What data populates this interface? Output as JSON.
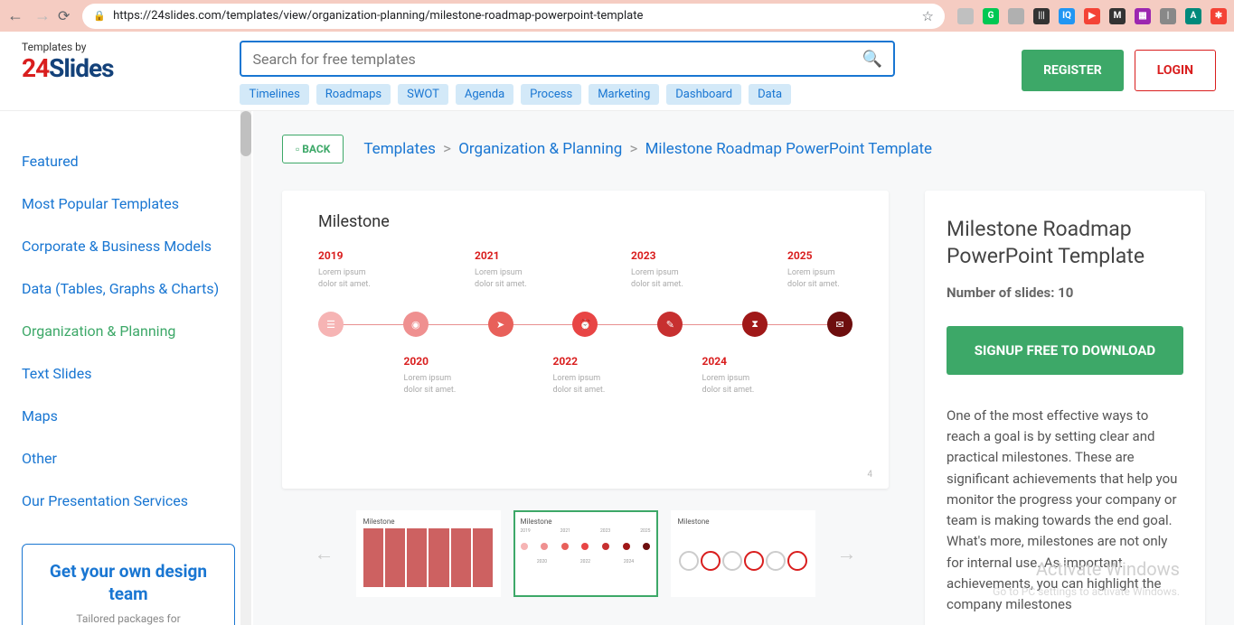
{
  "browser": {
    "url": "https://24slides.com/templates/view/organization-planning/milestone-roadmap-powerpoint-template",
    "ext_icons": [
      {
        "bg": "#c0c0c0",
        "txt": ""
      },
      {
        "bg": "#00c853",
        "txt": "G"
      },
      {
        "bg": "#b0b0b0",
        "txt": ""
      },
      {
        "bg": "#333",
        "txt": "|||"
      },
      {
        "bg": "#2196f3",
        "txt": "IQ"
      },
      {
        "bg": "#f44336",
        "txt": "▶"
      },
      {
        "bg": "#333",
        "txt": "M"
      },
      {
        "bg": "#9c27b0",
        "txt": "▦"
      },
      {
        "bg": "#888",
        "txt": "|"
      },
      {
        "bg": "#00897b",
        "txt": "A"
      },
      {
        "bg": "#f44336",
        "txt": "✱"
      }
    ]
  },
  "logo": {
    "top": "Templates by",
    "num": "24",
    "word": "Slides"
  },
  "search": {
    "placeholder": "Search for free templates"
  },
  "tags": [
    "Timelines",
    "Roadmaps",
    "SWOT",
    "Agenda",
    "Process",
    "Marketing",
    "Dashboard",
    "Data"
  ],
  "header_btns": {
    "register": "REGISTER",
    "login": "LOGIN"
  },
  "sidebar": {
    "items": [
      {
        "label": "Featured",
        "active": false
      },
      {
        "label": "Most Popular Templates",
        "active": false
      },
      {
        "label": "Corporate & Business Models",
        "active": false
      },
      {
        "label": "Data (Tables, Graphs & Charts)",
        "active": false
      },
      {
        "label": "Organization & Planning",
        "active": true
      },
      {
        "label": "Text Slides",
        "active": false
      },
      {
        "label": "Maps",
        "active": false
      },
      {
        "label": "Other",
        "active": false
      },
      {
        "label": "Our Presentation Services",
        "active": false
      }
    ],
    "promo": {
      "title": "Get your own design team",
      "sub": "Tailored packages for"
    }
  },
  "crumbs": {
    "back": "BACK",
    "a": "Templates",
    "b": "Organization & Planning",
    "c": "Milestone Roadmap PowerPoint Template"
  },
  "preview": {
    "title": "Milestone",
    "top": [
      {
        "year": "2019",
        "txt": "Lorem ipsum dolor sit amet."
      },
      {
        "year": "2021",
        "txt": "Lorem ipsum dolor sit amet."
      },
      {
        "year": "2023",
        "txt": "Lorem ipsum dolor sit amet."
      },
      {
        "year": "2025",
        "txt": "Lorem ipsum dolor sit amet."
      }
    ],
    "dots": [
      {
        "bg": "#f6b4b4",
        "icon": "☰"
      },
      {
        "bg": "#ef9090",
        "icon": "◉"
      },
      {
        "bg": "#e8605a",
        "icon": "➤"
      },
      {
        "bg": "#e84545",
        "icon": "⏰"
      },
      {
        "bg": "#c73030",
        "icon": "✎"
      },
      {
        "bg": "#a01818",
        "icon": "⧗"
      },
      {
        "bg": "#6d0e0e",
        "icon": "✉"
      }
    ],
    "bottom": [
      {
        "year": "2020",
        "txt": "Lorem ipsum dolor sit amet."
      },
      {
        "year": "2022",
        "txt": "Lorem ipsum dolor sit amet."
      },
      {
        "year": "2024",
        "txt": "Lorem ipsum dolor sit amet."
      }
    ],
    "page_num": "4"
  },
  "thumbs": {
    "title": "Milestone"
  },
  "info": {
    "title": "Milestone Roadmap PowerPoint Template",
    "count_label": "Number of slides: ",
    "count_val": "10",
    "dl": "SIGNUP FREE TO DOWNLOAD",
    "desc": "One of the most effective ways to reach a goal is by setting clear and practical milestones. These are significant achievements that help you monitor the progress your company or team is making towards the end goal. What's more, milestones are not only for internal use. As important achievements, you can highlight the company milestones"
  },
  "watermark": {
    "a": "Activate Windows",
    "b": "Go to PC settings to activate Windows."
  }
}
